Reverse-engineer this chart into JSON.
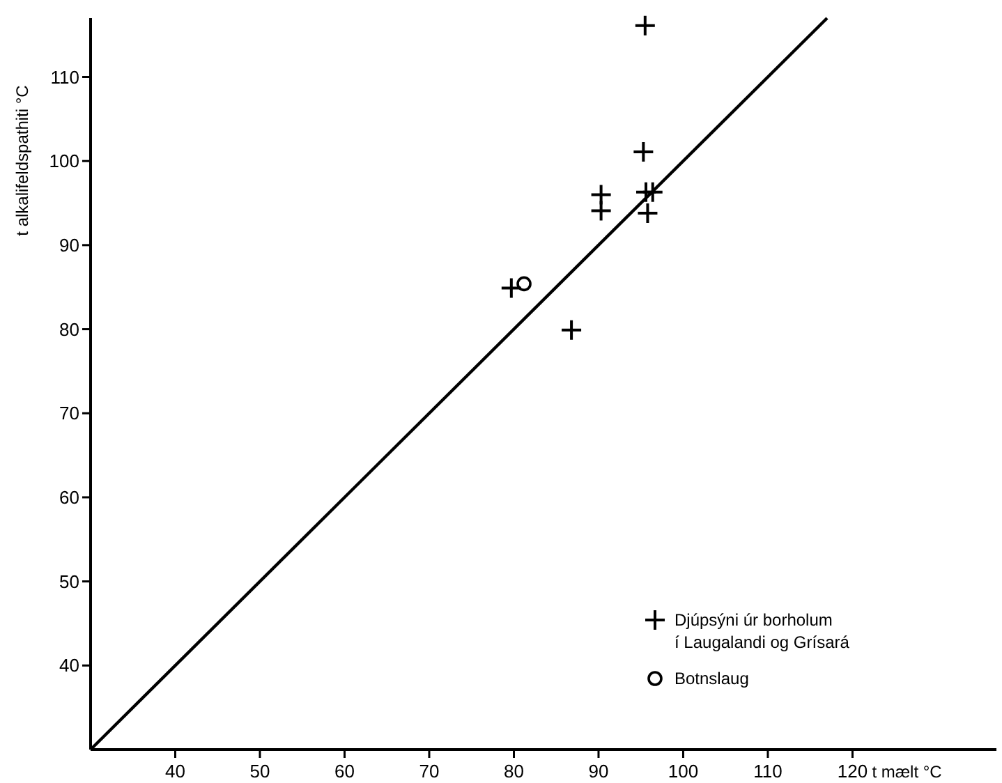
{
  "chart_data": {
    "type": "scatter",
    "xlabel": "t mælt °C",
    "ylabel": "t alkalifeldspathiti °C",
    "xlim": [
      30,
      137
    ],
    "ylim": [
      30,
      117
    ],
    "xticks": [
      40,
      50,
      60,
      70,
      80,
      90,
      100,
      110,
      120
    ],
    "yticks": [
      40,
      50,
      60,
      70,
      80,
      90,
      100,
      110
    ],
    "legend": "bottom right",
    "series": [
      {
        "name": "Djúpsýni úr borholum\ní Laugalandi og Grísará",
        "color": "#000000",
        "marker": "cross",
        "x": [
          95.5,
          95.3,
          90.3,
          90.3,
          95.6,
          96.4,
          95.8,
          79.7,
          86.8
        ],
        "values": [
          116.1,
          101.1,
          96.0,
          94.1,
          96.3,
          96.3,
          93.8,
          84.9,
          79.9
        ]
      },
      {
        "name": "Botnslaug",
        "color": "#000000",
        "marker": "circle",
        "x": [
          81.2
        ],
        "values": [
          85.4
        ]
      },
      {
        "type": "line",
        "color": "#000000",
        "x": [
          30,
          117
        ],
        "values": [
          30,
          117
        ]
      }
    ]
  }
}
